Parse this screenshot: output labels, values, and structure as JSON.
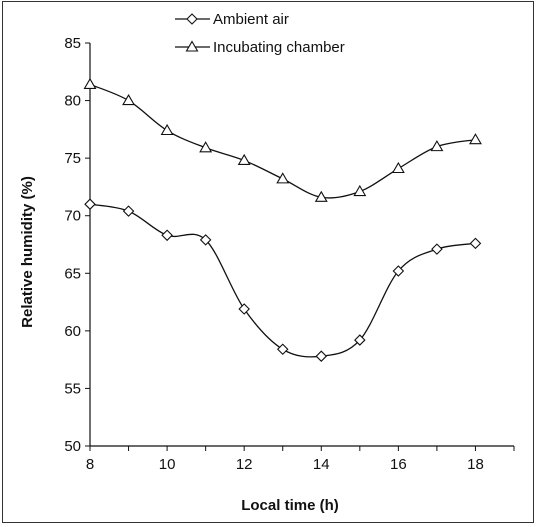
{
  "chart_data": {
    "type": "line",
    "xlabel": "Local time (h)",
    "ylabel": "Relative humidity (%)",
    "xlim": [
      8,
      19
    ],
    "ylim": [
      50,
      85
    ],
    "xticks": [
      8,
      10,
      12,
      14,
      16,
      18
    ],
    "yticks": [
      50,
      55,
      60,
      65,
      70,
      75,
      80,
      85
    ],
    "legend_position": "top-center",
    "grid": false,
    "series": [
      {
        "name": "Ambient air",
        "marker": "diamond",
        "x": [
          8,
          9,
          10,
          11,
          12,
          13,
          14,
          15,
          16,
          17,
          18
        ],
        "y": [
          71.0,
          70.4,
          68.3,
          67.9,
          61.9,
          58.4,
          57.8,
          59.2,
          65.2,
          67.1,
          67.6
        ]
      },
      {
        "name": "Incubating chamber",
        "marker": "triangle",
        "x": [
          8,
          9,
          10,
          11,
          12,
          13,
          14,
          15,
          16,
          17,
          18
        ],
        "y": [
          81.4,
          80.0,
          77.4,
          75.9,
          74.8,
          73.2,
          71.6,
          72.1,
          74.1,
          76.0,
          76.6
        ]
      }
    ]
  }
}
